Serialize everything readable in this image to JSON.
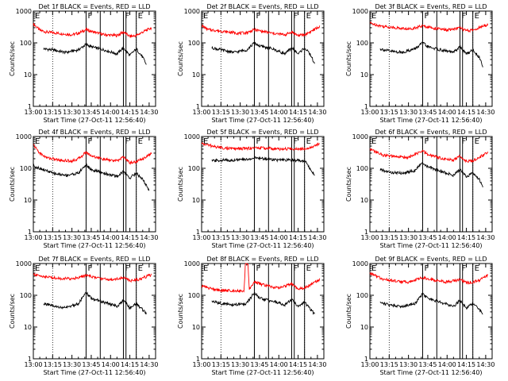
{
  "x_tick_labels": [
    "13:00",
    "13:15",
    "13:30",
    "13:45",
    "14:00",
    "14:15",
    "14:30"
  ],
  "y_tick_labels": [
    "1",
    "10",
    "100",
    "1000"
  ],
  "colors": {
    "events": "#000000",
    "lld": "#ff0000",
    "axes": "#000000",
    "background": "#ffffff"
  },
  "chart_data": [
    {
      "type": "line",
      "title": "Det 1f BLACK = Events, RED = LLD",
      "xlabel": "Start Time (27-Oct-11 12:56:40)",
      "ylabel": "Counts/sec",
      "yscale": "log",
      "ylim": [
        1,
        1000
      ],
      "xlim": [
        "13:00",
        "14:35"
      ],
      "grid": false,
      "markers": [
        {
          "time": "13:00",
          "label": "E"
        },
        {
          "time": "13:41",
          "label": "F"
        },
        {
          "time": "13:52",
          "label": ""
        },
        {
          "time": "14:10",
          "label": "F"
        },
        {
          "time": "14:12",
          "label": ""
        },
        {
          "time": "14:20",
          "label": "E"
        }
      ],
      "dotted_lines": [
        "13:15",
        "13:41",
        "14:20"
      ],
      "series": [
        {
          "color": "#ff0000",
          "x": [
            "13:00",
            "13:05",
            "13:10",
            "13:20",
            "13:30",
            "13:35",
            "13:41",
            "13:45",
            "13:55",
            "14:05",
            "14:10",
            "14:15",
            "14:20",
            "14:25",
            "14:32"
          ],
          "values": [
            400,
            250,
            220,
            200,
            180,
            200,
            260,
            230,
            180,
            170,
            220,
            160,
            170,
            220,
            300
          ]
        },
        {
          "color": "#000000",
          "x": [
            "13:08",
            "13:15",
            "13:25",
            "13:35",
            "13:41",
            "13:45",
            "13:55",
            "14:05",
            "14:10",
            "14:15",
            "14:20",
            "14:25",
            "14:28"
          ],
          "values": [
            65,
            60,
            50,
            60,
            90,
            75,
            60,
            45,
            70,
            40,
            65,
            35,
            20
          ]
        }
      ]
    },
    {
      "type": "line",
      "title": "Det 2f BLACK = Events, RED = LLD",
      "xlabel": "Start Time (27-Oct-11 12:56:40)",
      "ylabel": "Counts/sec",
      "yscale": "log",
      "ylim": [
        1,
        1000
      ],
      "xlim": [
        "13:00",
        "14:35"
      ],
      "grid": false,
      "markers": [
        {
          "time": "13:00",
          "label": "E"
        },
        {
          "time": "13:41",
          "label": "F"
        },
        {
          "time": "13:52",
          "label": ""
        },
        {
          "time": "14:10",
          "label": "F"
        },
        {
          "time": "14:12",
          "label": ""
        },
        {
          "time": "14:20",
          "label": "E"
        }
      ],
      "dotted_lines": [
        "13:15",
        "13:41",
        "14:20"
      ],
      "series": [
        {
          "color": "#ff0000",
          "x": [
            "13:00",
            "13:05",
            "13:10",
            "13:20",
            "13:30",
            "13:35",
            "13:41",
            "13:45",
            "13:55",
            "14:05",
            "14:10",
            "14:15",
            "14:20",
            "14:25",
            "14:32"
          ],
          "values": [
            350,
            260,
            250,
            220,
            200,
            210,
            260,
            240,
            200,
            180,
            220,
            170,
            180,
            230,
            330
          ]
        },
        {
          "color": "#000000",
          "x": [
            "13:08",
            "13:15",
            "13:25",
            "13:35",
            "13:41",
            "13:45",
            "13:55",
            "14:05",
            "14:10",
            "14:15",
            "14:20",
            "14:25",
            "14:28"
          ],
          "values": [
            70,
            60,
            50,
            60,
            100,
            80,
            65,
            45,
            70,
            45,
            70,
            40,
            20
          ]
        }
      ]
    },
    {
      "type": "line",
      "title": "Det 3f BLACK = Events, RED = LLD",
      "xlabel": "Start Time (27-Oct-11 12:56:40)",
      "ylabel": "Counts/sec",
      "yscale": "log",
      "ylim": [
        1,
        1000
      ],
      "xlim": [
        "13:00",
        "14:35"
      ],
      "grid": false,
      "markers": [
        {
          "time": "13:00",
          "label": "E"
        },
        {
          "time": "13:41",
          "label": "F"
        },
        {
          "time": "13:52",
          "label": ""
        },
        {
          "time": "14:10",
          "label": "F"
        },
        {
          "time": "14:12",
          "label": ""
        },
        {
          "time": "14:20",
          "label": "E"
        }
      ],
      "dotted_lines": [
        "13:15",
        "13:41",
        "14:20"
      ],
      "series": [
        {
          "color": "#ff0000",
          "x": [
            "13:00",
            "13:10",
            "13:20",
            "13:30",
            "13:41",
            "13:50",
            "14:00",
            "14:10",
            "14:15",
            "14:20",
            "14:25",
            "14:32"
          ],
          "values": [
            420,
            330,
            300,
            270,
            340,
            290,
            250,
            300,
            240,
            250,
            300,
            380
          ]
        },
        {
          "color": "#000000",
          "x": [
            "13:08",
            "13:15",
            "13:25",
            "13:35",
            "13:41",
            "13:45",
            "13:55",
            "14:05",
            "14:10",
            "14:15",
            "14:20",
            "14:25",
            "14:28"
          ],
          "values": [
            65,
            55,
            50,
            65,
            100,
            75,
            60,
            50,
            75,
            45,
            60,
            35,
            18
          ]
        }
      ]
    },
    {
      "type": "line",
      "title": "Det 4f BLACK = Events, RED = LLD",
      "xlabel": "Start Time (27-Oct-11 12:56:40)",
      "ylabel": "Counts/sec",
      "yscale": "log",
      "ylim": [
        1,
        1000
      ],
      "xlim": [
        "13:00",
        "14:35"
      ],
      "grid": false,
      "markers": [
        {
          "time": "13:00",
          "label": "E"
        },
        {
          "time": "13:41",
          "label": "F"
        },
        {
          "time": "13:52",
          "label": ""
        },
        {
          "time": "14:10",
          "label": "F"
        },
        {
          "time": "14:12",
          "label": ""
        },
        {
          "time": "14:20",
          "label": "E"
        }
      ],
      "dotted_lines": [
        "13:15",
        "13:41",
        "14:20"
      ],
      "series": [
        {
          "color": "#ff0000",
          "x": [
            "13:00",
            "13:05",
            "13:10",
            "13:20",
            "13:30",
            "13:35",
            "13:41",
            "13:45",
            "13:55",
            "14:05",
            "14:10",
            "14:15",
            "14:20",
            "14:25",
            "14:32"
          ],
          "values": [
            550,
            300,
            220,
            180,
            170,
            200,
            320,
            250,
            190,
            170,
            230,
            150,
            160,
            200,
            300
          ]
        },
        {
          "color": "#000000",
          "x": [
            "13:00",
            "13:08",
            "13:15",
            "13:25",
            "13:35",
            "13:41",
            "13:45",
            "13:55",
            "14:05",
            "14:10",
            "14:15",
            "14:20",
            "14:25",
            "14:30"
          ],
          "values": [
            120,
            90,
            70,
            60,
            70,
            130,
            90,
            70,
            55,
            80,
            50,
            70,
            45,
            20
          ]
        }
      ]
    },
    {
      "type": "line",
      "title": "Det 5f BLACK = Events, RED = LLD",
      "xlabel": "Start Time (27-Oct-11 12:56:40)",
      "ylabel": "Counts/sec",
      "yscale": "log",
      "ylim": [
        1,
        1000
      ],
      "xlim": [
        "13:00",
        "14:35"
      ],
      "grid": false,
      "markers": [
        {
          "time": "13:00",
          "label": "E"
        },
        {
          "time": "13:41",
          "label": "F"
        },
        {
          "time": "13:52",
          "label": ""
        },
        {
          "time": "14:10",
          "label": "F"
        },
        {
          "time": "14:12",
          "label": ""
        },
        {
          "time": "14:20",
          "label": "E"
        }
      ],
      "dotted_lines": [
        "13:15",
        "13:41",
        "14:20"
      ],
      "series": [
        {
          "color": "#ff0000",
          "x": [
            "13:00",
            "13:10",
            "13:20",
            "13:30",
            "13:41",
            "13:50",
            "14:00",
            "14:10",
            "14:20",
            "14:25",
            "14:32"
          ],
          "values": [
            600,
            480,
            420,
            410,
            440,
            430,
            400,
            410,
            420,
            460,
            600
          ]
        },
        {
          "color": "#000000",
          "x": [
            "13:08",
            "13:15",
            "13:25",
            "13:35",
            "13:41",
            "13:50",
            "14:00",
            "14:10",
            "14:20",
            "14:28"
          ],
          "values": [
            170,
            180,
            180,
            190,
            210,
            200,
            180,
            180,
            175,
            60
          ]
        }
      ]
    },
    {
      "type": "line",
      "title": "Det 6f BLACK = Events, RED = LLD",
      "xlabel": "Start Time (27-Oct-11 12:56:40)",
      "ylabel": "Counts/sec",
      "yscale": "log",
      "ylim": [
        1,
        1000
      ],
      "xlim": [
        "13:00",
        "14:35"
      ],
      "grid": false,
      "markers": [
        {
          "time": "13:00",
          "label": "E"
        },
        {
          "time": "13:41",
          "label": "F"
        },
        {
          "time": "13:52",
          "label": ""
        },
        {
          "time": "14:10",
          "label": "F"
        },
        {
          "time": "14:12",
          "label": ""
        },
        {
          "time": "14:20",
          "label": "E"
        }
      ],
      "dotted_lines": [
        "13:15",
        "13:41",
        "14:20"
      ],
      "series": [
        {
          "color": "#ff0000",
          "x": [
            "13:00",
            "13:10",
            "13:20",
            "13:30",
            "13:41",
            "13:45",
            "13:55",
            "14:05",
            "14:10",
            "14:15",
            "14:20",
            "14:25",
            "14:32"
          ],
          "values": [
            400,
            260,
            230,
            220,
            350,
            270,
            210,
            180,
            240,
            170,
            170,
            220,
            330
          ]
        },
        {
          "color": "#000000",
          "x": [
            "13:08",
            "13:15",
            "13:25",
            "13:35",
            "13:41",
            "13:45",
            "13:55",
            "14:05",
            "14:10",
            "14:15",
            "14:20",
            "14:25",
            "14:28"
          ],
          "values": [
            90,
            75,
            70,
            85,
            150,
            110,
            80,
            60,
            90,
            55,
            70,
            45,
            25
          ]
        }
      ]
    },
    {
      "type": "line",
      "title": "Det 7f BLACK = Events, RED = LLD",
      "xlabel": "Start Time (27-Oct-11 12:56:40)",
      "ylabel": "Counts/sec",
      "yscale": "log",
      "ylim": [
        1,
        1000
      ],
      "xlim": [
        "13:00",
        "14:35"
      ],
      "grid": false,
      "markers": [
        {
          "time": "13:00",
          "label": "E"
        },
        {
          "time": "13:41",
          "label": "F"
        },
        {
          "time": "13:52",
          "label": ""
        },
        {
          "time": "14:10",
          "label": "F"
        },
        {
          "time": "14:12",
          "label": ""
        },
        {
          "time": "14:20",
          "label": "E"
        }
      ],
      "dotted_lines": [
        "13:15",
        "13:41",
        "14:20"
      ],
      "series": [
        {
          "color": "#ff0000",
          "x": [
            "13:00",
            "13:10",
            "13:20",
            "13:30",
            "13:41",
            "13:50",
            "14:00",
            "14:10",
            "14:15",
            "14:20",
            "14:25",
            "14:32"
          ],
          "values": [
            450,
            380,
            340,
            330,
            420,
            350,
            310,
            360,
            290,
            300,
            350,
            450
          ]
        },
        {
          "color": "#000000",
          "x": [
            "13:08",
            "13:15",
            "13:25",
            "13:35",
            "13:41",
            "13:45",
            "13:55",
            "14:05",
            "14:10",
            "14:15",
            "14:20",
            "14:25",
            "14:28"
          ],
          "values": [
            55,
            45,
            40,
            55,
            120,
            80,
            60,
            45,
            70,
            40,
            55,
            35,
            25
          ]
        }
      ]
    },
    {
      "type": "line",
      "title": "Det 8f BLACK = Events, RED = LLD",
      "xlabel": "Start Time (27-Oct-11 12:56:40)",
      "ylabel": "Counts/sec",
      "yscale": "log",
      "ylim": [
        1,
        1000
      ],
      "xlim": [
        "13:00",
        "14:35"
      ],
      "grid": false,
      "markers": [
        {
          "time": "13:00",
          "label": "E"
        },
        {
          "time": "13:41",
          "label": "F"
        },
        {
          "time": "13:52",
          "label": ""
        },
        {
          "time": "14:10",
          "label": "F"
        },
        {
          "time": "14:12",
          "label": ""
        },
        {
          "time": "14:20",
          "label": "E"
        }
      ],
      "dotted_lines": [
        "13:15",
        "13:41",
        "14:20"
      ],
      "series": [
        {
          "color": "#ff0000",
          "x": [
            "13:00",
            "13:10",
            "13:20",
            "13:33",
            "13:34",
            "13:36",
            "13:37",
            "13:41",
            "13:50",
            "14:00",
            "14:10",
            "14:15",
            "14:20",
            "14:25",
            "14:32"
          ],
          "values": [
            200,
            150,
            140,
            140,
            1000,
            1000,
            160,
            260,
            200,
            170,
            230,
            160,
            170,
            220,
            320
          ]
        },
        {
          "color": "#000000",
          "x": [
            "13:08",
            "13:15",
            "13:25",
            "13:35",
            "13:41",
            "13:45",
            "13:55",
            "14:05",
            "14:10",
            "14:15",
            "14:20",
            "14:25",
            "14:28"
          ],
          "values": [
            65,
            55,
            50,
            55,
            120,
            80,
            65,
            50,
            75,
            45,
            60,
            35,
            25
          ]
        }
      ]
    },
    {
      "type": "line",
      "title": "Det 9f BLACK = Events, RED = LLD",
      "xlabel": "Start Time (27-Oct-11 12:56:40)",
      "ylabel": "Counts/sec",
      "yscale": "log",
      "ylim": [
        1,
        1000
      ],
      "xlim": [
        "13:00",
        "14:35"
      ],
      "grid": false,
      "markers": [
        {
          "time": "13:00",
          "label": "E"
        },
        {
          "time": "13:41",
          "label": "F"
        },
        {
          "time": "13:52",
          "label": ""
        },
        {
          "time": "14:10",
          "label": "F"
        },
        {
          "time": "14:12",
          "label": ""
        },
        {
          "time": "14:20",
          "label": "E"
        }
      ],
      "dotted_lines": [
        "13:15",
        "13:41",
        "14:20"
      ],
      "series": [
        {
          "color": "#ff0000",
          "x": [
            "13:00",
            "13:10",
            "13:20",
            "13:30",
            "13:41",
            "13:50",
            "14:00",
            "14:10",
            "14:15",
            "14:20",
            "14:25",
            "14:32"
          ],
          "values": [
            500,
            320,
            280,
            260,
            360,
            300,
            260,
            310,
            250,
            260,
            300,
            420
          ]
        },
        {
          "color": "#000000",
          "x": [
            "13:08",
            "13:15",
            "13:25",
            "13:35",
            "13:41",
            "13:45",
            "13:55",
            "14:05",
            "14:10",
            "14:15",
            "14:20",
            "14:25",
            "14:28"
          ],
          "values": [
            60,
            50,
            45,
            55,
            110,
            80,
            60,
            45,
            70,
            40,
            55,
            35,
            25
          ]
        }
      ]
    }
  ]
}
